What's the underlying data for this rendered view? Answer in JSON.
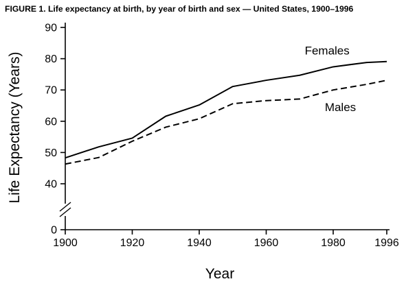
{
  "title": "FIGURE 1. Life expectancy at birth, by year of birth and sex — United States, 1900–1996",
  "chart_data": {
    "type": "line",
    "title": "FIGURE 1. Life expectancy at birth, by year of birth and sex — United States, 1900–1996",
    "xlabel": "Year",
    "ylabel": "Life Expectancy (Years)",
    "x": [
      1900,
      1910,
      1920,
      1930,
      1940,
      1950,
      1960,
      1970,
      1980,
      1990,
      1996
    ],
    "series": [
      {
        "name": "Females",
        "line_style": "solid",
        "values": [
          48.3,
          51.8,
          54.6,
          61.6,
          65.2,
          71.1,
          73.1,
          74.7,
          77.4,
          78.8,
          79.1
        ]
      },
      {
        "name": "Males",
        "line_style": "dashed",
        "values": [
          46.3,
          48.4,
          53.6,
          58.1,
          60.8,
          65.6,
          66.6,
          67.1,
          70.0,
          71.8,
          73.1
        ]
      }
    ],
    "x_ticks": [
      1900,
      1920,
      1940,
      1960,
      1980,
      1996
    ],
    "y_ticks": [
      0,
      40,
      50,
      60,
      70,
      80,
      90
    ],
    "x_range": [
      1900,
      1996
    ],
    "y_display_range": [
      40,
      90
    ],
    "axis_break_on_y": true,
    "grid": false,
    "legend": "inline-labels",
    "series_labels": [
      {
        "text": "Females",
        "year": 1971.5,
        "value": 81.3
      },
      {
        "text": "Males",
        "year": 1977.5,
        "value": 63.2
      }
    ]
  }
}
